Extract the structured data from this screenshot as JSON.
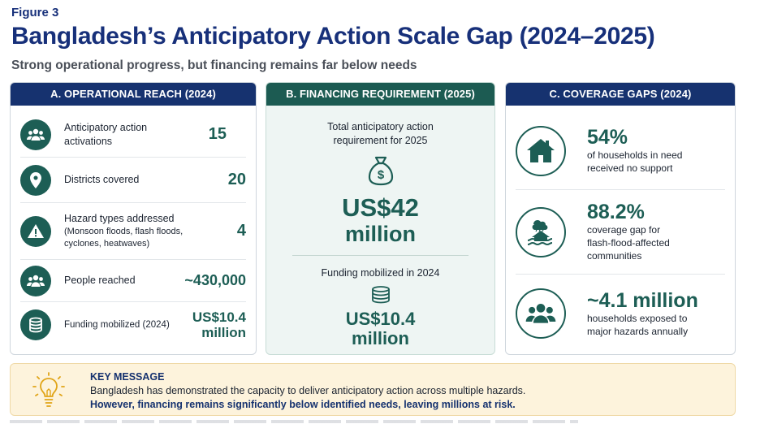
{
  "figure_label": "Figure 3",
  "title": "Bangladesh’s Anticipatory Action Scale Gap (2024–2025)",
  "subtitle": "Strong operational progress, but financing remains far below needs",
  "colors": {
    "navy": "#16326f",
    "green": "#1d5e55",
    "key_bg": "#fdf3dc"
  },
  "panel_a": {
    "header": "A. OPERATIONAL REACH (2024)",
    "rows": [
      {
        "icon": "people-group-icon",
        "label": "Anticipatory action activations",
        "value": "15"
      },
      {
        "icon": "map-pin-icon",
        "label": "Districts covered",
        "value": "20"
      },
      {
        "icon": "warning-icon",
        "label": "Hazard types addressed",
        "note": "(Monsoon floods, flash floods, cyclones, heatwaves)",
        "value": "4"
      },
      {
        "icon": "people-group-icon",
        "label": "People reached",
        "value": "~430,000"
      },
      {
        "icon": "coin-stack-icon",
        "label": "Funding mobilized (2024)",
        "value": "US$10.4 million"
      }
    ]
  },
  "panel_b": {
    "header": "B. FINANCING REQUIREMENT (2025)",
    "req_label": "Total anticipatory action requirement for 2025",
    "req_icon": "money-bag-icon",
    "req_value_line1": "US$42",
    "req_value_line2": "million",
    "mob_label": "Funding mobilized in 2024",
    "mob_icon": "coin-stack-icon",
    "mob_value_line1": "US$10.4",
    "mob_value_line2": "million"
  },
  "panel_c": {
    "header": "C. COVERAGE GAPS (2024)",
    "items": [
      {
        "icon": "house-icon",
        "value": "54%",
        "text": "of households in need received no support"
      },
      {
        "icon": "flooded-house-icon",
        "value": "88.2%",
        "text": "coverage gap for flash-flood-affected communities"
      },
      {
        "icon": "people-group-icon",
        "value": "~4.1 million",
        "text": "households exposed to major hazards annually"
      }
    ]
  },
  "key_message": {
    "icon": "lightbulb-icon",
    "title": "KEY MESSAGE",
    "line1": "Bangladesh has demonstrated the capacity to deliver anticipatory action across multiple hazards.",
    "line2": "However, financing remains significantly below identified needs, leaving millions at risk."
  }
}
